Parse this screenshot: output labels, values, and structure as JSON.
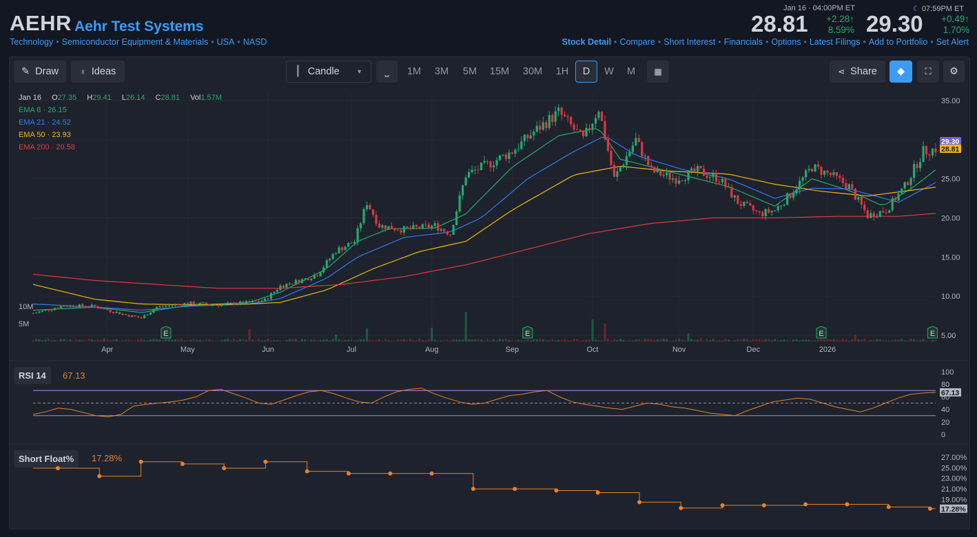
{
  "header": {
    "ticker": "AEHR",
    "company": "Aehr Test Systems",
    "sector": "Technology",
    "industry": "Semiconductor Equipment & Materials",
    "country": "USA",
    "exchange": "NASD",
    "close_stamp": "Jan 16 · 04:00PM ET",
    "close_price": "28.81",
    "close_change": "+2.28",
    "close_change_pct": "8.59%",
    "after_stamp": "07:59PM ET",
    "after_price": "29.30",
    "after_change": "+0.49",
    "after_change_pct": "1.70%"
  },
  "nav": [
    "Stock Detail",
    "Compare",
    "Short Interest",
    "Financials",
    "Options",
    "Latest Filings",
    "Add to Portfolio",
    "Set Alert"
  ],
  "toolbar": {
    "draw": "Draw",
    "ideas": "Ideas",
    "chart_type": "Candle",
    "timeframes": [
      "1M",
      "3M",
      "5M",
      "15M",
      "30M",
      "1H",
      "D",
      "W",
      "M"
    ],
    "active_timeframe": "D",
    "share": "Share"
  },
  "ohlc": {
    "date": "Jan 16",
    "o_label": "O",
    "o": "27.35",
    "h_label": "H",
    "h": "29.41",
    "l_label": "L",
    "l": "26.14",
    "c_label": "C",
    "c": "28.81",
    "vol_label": "Vol",
    "vol": "1.57M"
  },
  "ema": [
    {
      "label": "EMA 8",
      "value": "26.15",
      "color": "#22ab6e"
    },
    {
      "label": "EMA 21",
      "value": "24.52",
      "color": "#2f7df0"
    },
    {
      "label": "EMA 50",
      "value": "23.93",
      "color": "#f0b90b"
    },
    {
      "label": "EMA 200",
      "value": "20.58",
      "color": "#e03a3e"
    }
  ],
  "colors": {
    "up": "#22ab6e",
    "down": "#e0373d",
    "ema8": "#22ab6e",
    "ema21": "#2f7df0",
    "ema50": "#f0b90b",
    "ema200": "#e03a3e",
    "rsi": "#e6822d",
    "short": "#e6822d",
    "accent": "#3b9cf5"
  },
  "chart_data": [
    {
      "type": "line",
      "name": "price",
      "y_ticks": [
        "35.00",
        "30.00",
        "25.00",
        "20.00",
        "15.00",
        "10.00",
        "5.00"
      ],
      "ylim": [
        5,
        35
      ],
      "x_labels": [
        "Apr",
        "May",
        "Jun",
        "Jul",
        "Aug",
        "Sep",
        "Oct",
        "Nov",
        "Dec",
        "2026"
      ],
      "price_tags": [
        "29.30",
        "28.81"
      ],
      "volume_labels": [
        "10M",
        "5M"
      ],
      "earnings_marker": "E",
      "close_path": [
        [
          0,
          7.8
        ],
        [
          10,
          8.8
        ],
        [
          20,
          8.7
        ],
        [
          30,
          7.6
        ],
        [
          35,
          7.2
        ],
        [
          40,
          8.6
        ],
        [
          50,
          9.1
        ],
        [
          60,
          8.9
        ],
        [
          70,
          9.2
        ],
        [
          75,
          9.5
        ],
        [
          80,
          11.3
        ],
        [
          88,
          12.2
        ],
        [
          92,
          12.8
        ],
        [
          98,
          15.8
        ],
        [
          104,
          17.0
        ],
        [
          108,
          22.0
        ],
        [
          112,
          19.0
        ],
        [
          120,
          18.5
        ],
        [
          130,
          19.0
        ],
        [
          135,
          18.0
        ],
        [
          140,
          25.5
        ],
        [
          148,
          27.0
        ],
        [
          155,
          28.5
        ],
        [
          162,
          31.0
        ],
        [
          170,
          33.5
        ],
        [
          178,
          30.0
        ],
        [
          183,
          34.0
        ],
        [
          188,
          25.0
        ],
        [
          195,
          30.0
        ],
        [
          200,
          26.0
        ],
        [
          208,
          25.0
        ],
        [
          215,
          26.0
        ],
        [
          222,
          25.0
        ],
        [
          228,
          22.0
        ],
        [
          235,
          20.5
        ],
        [
          240,
          21.0
        ],
        [
          245,
          23.0
        ],
        [
          252,
          26.5
        ],
        [
          258,
          25.5
        ],
        [
          264,
          24.0
        ],
        [
          270,
          20.3
        ],
        [
          276,
          21.0
        ],
        [
          282,
          24.0
        ],
        [
          288,
          28.5
        ],
        [
          292,
          28.81
        ]
      ],
      "ema_paths": {
        "ema8": [
          [
            0,
            8.2
          ],
          [
            20,
            8.6
          ],
          [
            35,
            7.9
          ],
          [
            50,
            8.8
          ],
          [
            70,
            9.2
          ],
          [
            80,
            10.5
          ],
          [
            95,
            13.5
          ],
          [
            105,
            17.0
          ],
          [
            115,
            18.6
          ],
          [
            130,
            18.7
          ],
          [
            140,
            20.5
          ],
          [
            155,
            26.5
          ],
          [
            170,
            30.5
          ],
          [
            183,
            31.5
          ],
          [
            190,
            27.5
          ],
          [
            205,
            26.0
          ],
          [
            225,
            24.0
          ],
          [
            240,
            21.5
          ],
          [
            252,
            25.0
          ],
          [
            264,
            23.5
          ],
          [
            275,
            21.5
          ],
          [
            285,
            24.0
          ],
          [
            292,
            26.15
          ]
        ],
        "ema21": [
          [
            0,
            9.0
          ],
          [
            20,
            8.6
          ],
          [
            35,
            8.2
          ],
          [
            50,
            8.7
          ],
          [
            70,
            9.0
          ],
          [
            80,
            9.7
          ],
          [
            95,
            12.3
          ],
          [
            105,
            15.0
          ],
          [
            120,
            17.5
          ],
          [
            135,
            18.2
          ],
          [
            145,
            20.0
          ],
          [
            160,
            25.0
          ],
          [
            175,
            28.5
          ],
          [
            185,
            30.5
          ],
          [
            195,
            28.0
          ],
          [
            210,
            26.2
          ],
          [
            225,
            25.0
          ],
          [
            240,
            22.5
          ],
          [
            252,
            23.8
          ],
          [
            264,
            23.7
          ],
          [
            280,
            22.0
          ],
          [
            292,
            24.52
          ]
        ],
        "ema50": [
          [
            0,
            11.5
          ],
          [
            20,
            9.6
          ],
          [
            35,
            9.0
          ],
          [
            50,
            8.9
          ],
          [
            70,
            9.0
          ],
          [
            80,
            9.2
          ],
          [
            95,
            10.8
          ],
          [
            110,
            13.5
          ],
          [
            125,
            15.7
          ],
          [
            140,
            17.0
          ],
          [
            155,
            21.0
          ],
          [
            175,
            25.5
          ],
          [
            190,
            26.6
          ],
          [
            205,
            26.0
          ],
          [
            225,
            25.6
          ],
          [
            240,
            24.3
          ],
          [
            255,
            23.4
          ],
          [
            270,
            22.8
          ],
          [
            292,
            23.93
          ]
        ],
        "ema200": [
          [
            0,
            12.8
          ],
          [
            20,
            12.0
          ],
          [
            40,
            11.5
          ],
          [
            60,
            11.0
          ],
          [
            80,
            11.0
          ],
          [
            100,
            11.5
          ],
          [
            120,
            12.5
          ],
          [
            140,
            14.0
          ],
          [
            160,
            16.0
          ],
          [
            180,
            18.0
          ],
          [
            200,
            19.3
          ],
          [
            220,
            20.0
          ],
          [
            240,
            20.0
          ],
          [
            260,
            20.2
          ],
          [
            280,
            20.2
          ],
          [
            292,
            20.58
          ]
        ]
      }
    },
    {
      "type": "line",
      "name": "RSI 14",
      "value_label": "67.13",
      "ylim": [
        0,
        100
      ],
      "y_ticks": [
        "100",
        "80",
        "60",
        "40",
        "20",
        "0"
      ],
      "overbought": 70,
      "oversold": 30,
      "values": [
        32,
        36,
        42,
        40,
        35,
        30,
        28,
        32,
        45,
        48,
        50,
        52,
        55,
        60,
        70,
        72,
        65,
        58,
        50,
        48,
        55,
        62,
        68,
        70,
        65,
        58,
        52,
        50,
        60,
        68,
        72,
        74,
        65,
        58,
        52,
        48,
        50,
        56,
        62,
        64,
        68,
        70,
        60,
        52,
        48,
        45,
        42,
        40,
        45,
        50,
        48,
        44,
        42,
        38,
        34,
        32,
        30,
        38,
        45,
        52,
        55,
        58,
        56,
        50,
        44,
        40,
        36,
        42,
        50,
        58,
        64,
        66,
        67.13
      ]
    },
    {
      "type": "line",
      "name": "Short Float%",
      "value_label": "17.28%",
      "ylim": [
        17,
        27.5
      ],
      "y_ticks": [
        "27.00%",
        "25.00%",
        "23.00%",
        "21.00%",
        "19.00%",
        "17.28%"
      ],
      "values": [
        24.9,
        23.4,
        26.1,
        25.7,
        24.9,
        26.1,
        24.3,
        23.9,
        23.9,
        23.9,
        21.0,
        21.0,
        20.7,
        20.3,
        18.5,
        17.4,
        17.9,
        17.9,
        18.1,
        18.1,
        17.6,
        17.28
      ]
    }
  ],
  "rsi_panel": {
    "title": "RSI 14",
    "value": "67.13"
  },
  "short_panel": {
    "title": "Short Float%",
    "value": "17.28%"
  }
}
